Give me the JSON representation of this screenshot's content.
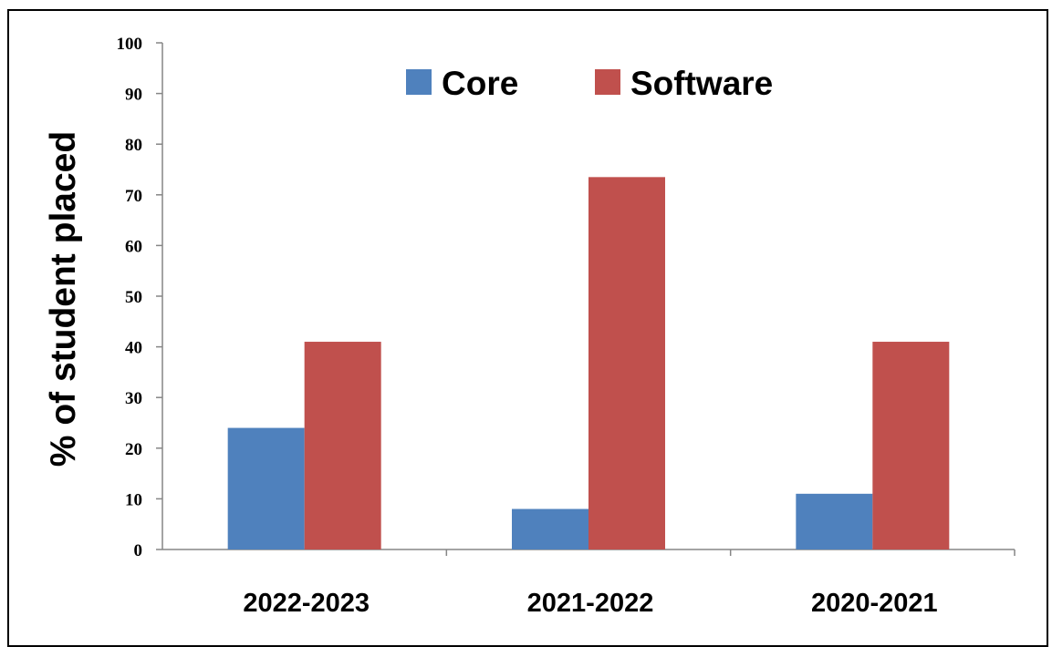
{
  "chart_data": {
    "type": "bar",
    "categories": [
      "2022-2023",
      "2021-2022",
      "2020-2021"
    ],
    "series": [
      {
        "name": "Core",
        "color": "#4f81bd",
        "values": [
          24,
          8,
          11
        ]
      },
      {
        "name": "Software",
        "color": "#c0504d",
        "values": [
          41,
          73.5,
          41
        ]
      }
    ],
    "title": "",
    "xlabel": "",
    "ylabel": "% of student placed",
    "ylim": [
      0,
      100
    ],
    "yticks": [
      0,
      10,
      20,
      30,
      40,
      50,
      60,
      70,
      80,
      90,
      100
    ],
    "grid": false,
    "legend": "top-center"
  }
}
